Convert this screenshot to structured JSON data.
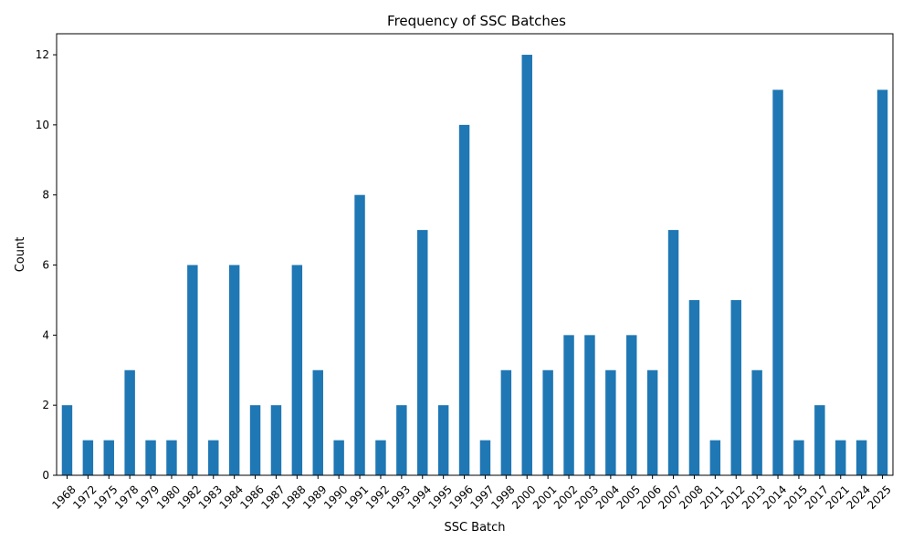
{
  "chart_data": {
    "type": "bar",
    "title": "Frequency of SSC Batches",
    "xlabel": "SSC Batch",
    "ylabel": "Count",
    "ylim": [
      0,
      12.6
    ],
    "yticks": [
      0,
      2,
      4,
      6,
      8,
      10,
      12
    ],
    "grid": false,
    "bar_color": "#1f77b4",
    "categories": [
      "1968",
      "1972",
      "1975",
      "1978",
      "1979",
      "1980",
      "1982",
      "1983",
      "1984",
      "1986",
      "1987",
      "1988",
      "1989",
      "1990",
      "1991",
      "1992",
      "1993",
      "1994",
      "1995",
      "1996",
      "1997",
      "1998",
      "2000",
      "2001",
      "2002",
      "2003",
      "2004",
      "2005",
      "2006",
      "2007",
      "2008",
      "2011",
      "2012",
      "2013",
      "2014",
      "2015",
      "2017",
      "2021",
      "2024",
      "2025"
    ],
    "values": [
      2,
      1,
      1,
      3,
      1,
      1,
      6,
      1,
      6,
      2,
      2,
      6,
      3,
      1,
      8,
      1,
      2,
      7,
      2,
      10,
      1,
      3,
      12,
      3,
      4,
      4,
      3,
      4,
      3,
      7,
      5,
      1,
      5,
      3,
      11,
      1,
      2,
      1,
      1,
      11
    ]
  }
}
